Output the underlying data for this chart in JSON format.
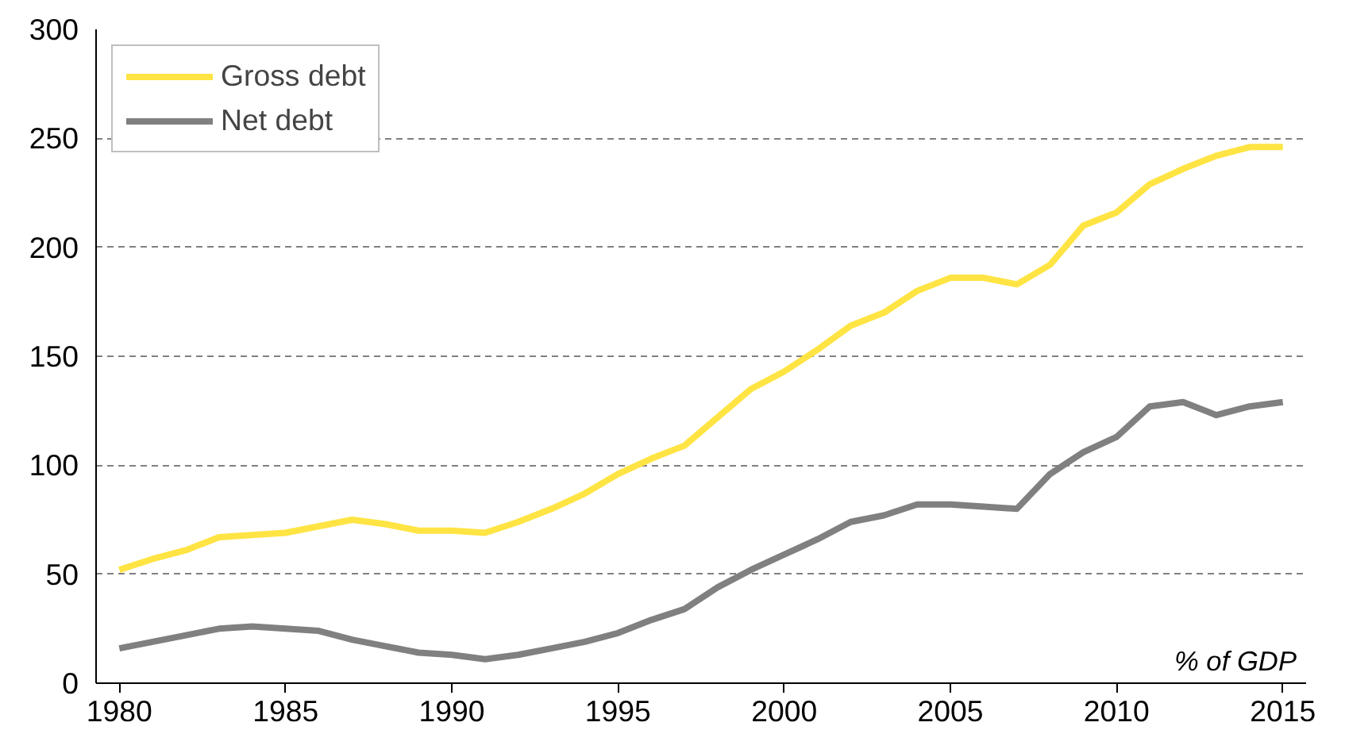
{
  "chart_data": {
    "type": "line",
    "x": [
      1980,
      1981,
      1982,
      1983,
      1984,
      1985,
      1986,
      1987,
      1988,
      1989,
      1990,
      1991,
      1992,
      1993,
      1994,
      1995,
      1996,
      1997,
      1998,
      1999,
      2000,
      2001,
      2002,
      2003,
      2004,
      2005,
      2006,
      2007,
      2008,
      2009,
      2010,
      2011,
      2012,
      2013,
      2014,
      2015
    ],
    "series": [
      {
        "name": "Gross debt",
        "color": "#ffe443",
        "values": [
          52,
          57,
          61,
          67,
          68,
          69,
          72,
          75,
          73,
          70,
          70,
          69,
          74,
          80,
          87,
          96,
          103,
          109,
          122,
          135,
          143,
          153,
          164,
          170,
          180,
          186,
          186,
          183,
          192,
          210,
          216,
          229,
          236,
          242,
          246,
          246
        ]
      },
      {
        "name": "Net debt",
        "color": "#808080",
        "values": [
          16,
          19,
          22,
          25,
          26,
          25,
          24,
          20,
          17,
          14,
          13,
          11,
          13,
          16,
          19,
          23,
          29,
          34,
          44,
          52,
          59,
          66,
          74,
          77,
          82,
          82,
          81,
          80,
          96,
          106,
          113,
          127,
          129,
          123,
          127,
          129
        ]
      }
    ],
    "xlim": [
      1979.3,
      2015.7
    ],
    "xticks": [
      1980,
      1985,
      1990,
      1995,
      2000,
      2005,
      2010,
      2015
    ],
    "ylim": [
      0,
      300
    ],
    "yticks": [
      0,
      50,
      100,
      150,
      200,
      250,
      300
    ],
    "grid": "y",
    "legend": "top left",
    "marker": "none",
    "line_style": "solid",
    "annotations": [
      "% of GDP"
    ]
  }
}
